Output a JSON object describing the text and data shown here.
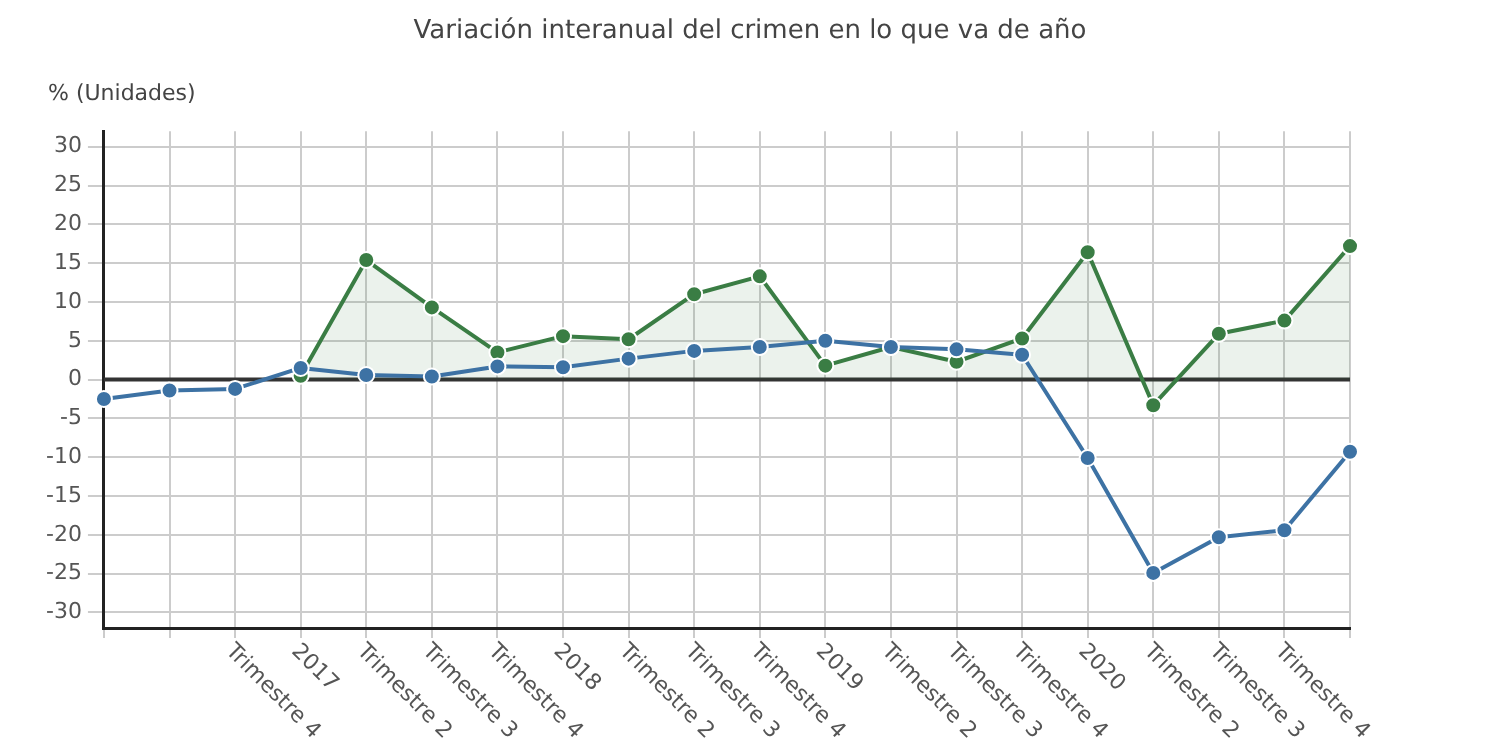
{
  "chart_data": {
    "type": "line",
    "title": "Variación interanual del crimen en lo que va de año",
    "ylabel": "% (Unidades)",
    "categories": [
      null,
      null,
      "Trimestre 4",
      "2017",
      "Trimestre 2",
      "Trimestre 3",
      "Trimestre 4",
      "2018",
      "Trimestre 2",
      "Trimestre 3",
      "Trimestre 4",
      "2019",
      "Trimestre 2",
      "Trimestre 3",
      "Trimestre 4",
      "2020",
      "Trimestre 2",
      "Trimestre 3",
      "Trimestre 4",
      null
    ],
    "series": [
      {
        "type": "area",
        "color": "#3a7d44",
        "values": [
          null,
          null,
          null,
          0.5,
          15.4,
          9.3,
          3.5,
          5.6,
          5.2,
          11.0,
          13.3,
          1.8,
          4.2,
          2.3,
          5.3,
          16.4,
          -3.3,
          5.9,
          7.6,
          17.2
        ]
      },
      {
        "type": "line",
        "color": "#3d72a4",
        "values": [
          -2.5,
          -1.4,
          -1.2,
          1.5,
          0.6,
          0.4,
          1.7,
          1.6,
          2.7,
          3.7,
          4.2,
          5.0,
          4.2,
          3.9,
          3.2,
          -10.1,
          -24.9,
          -20.3,
          -19.4,
          -9.3
        ]
      }
    ],
    "ylim": [
      -32,
      32
    ],
    "yticks": [
      -30,
      -25,
      -20,
      -15,
      -10,
      -5,
      0,
      5,
      10,
      15,
      20,
      25,
      30
    ],
    "ref_lines": [
      {
        "axis": "y",
        "value": 0,
        "color": "#333333"
      }
    ],
    "grid": true,
    "legend": false,
    "marker": "circle",
    "line_style": "solid"
  }
}
